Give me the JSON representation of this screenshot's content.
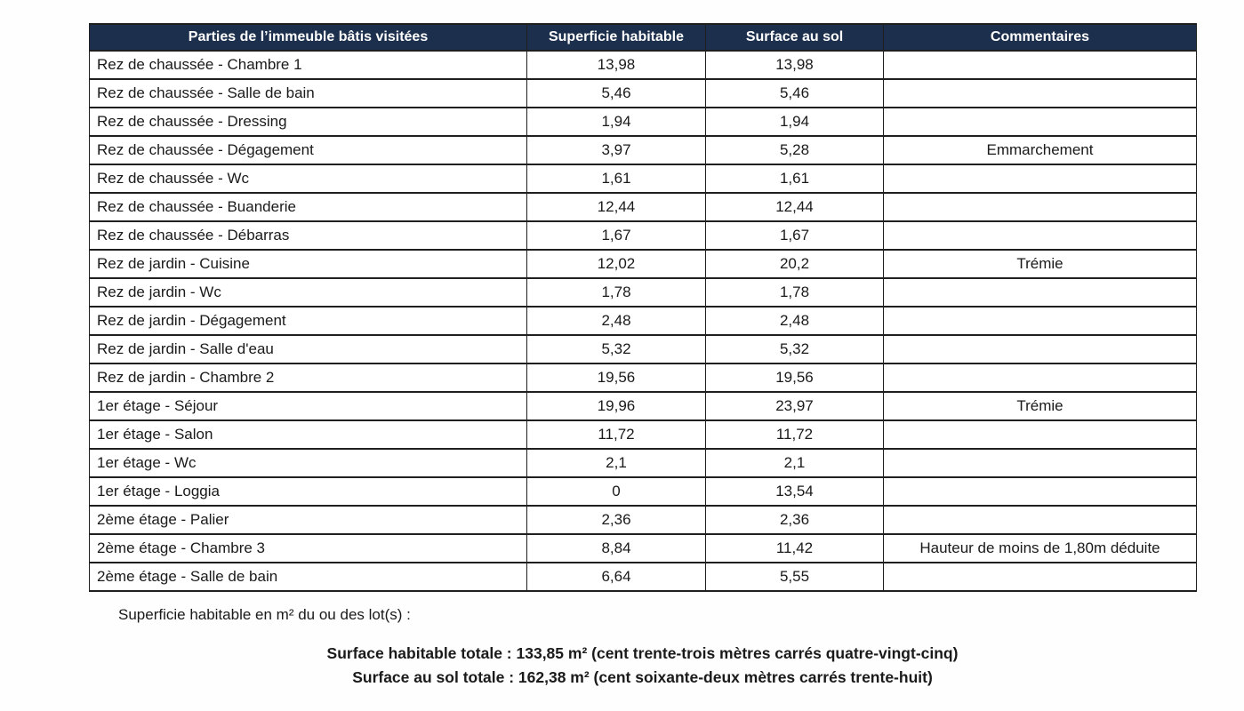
{
  "table": {
    "headers": [
      "Parties de l’immeuble bâtis visitées",
      "Superficie habitable",
      "Surface au sol",
      "Commentaires"
    ],
    "rows": [
      [
        "Rez de chaussée - Chambre 1",
        "13,98",
        "13,98",
        ""
      ],
      [
        "Rez de chaussée - Salle de bain",
        "5,46",
        "5,46",
        ""
      ],
      [
        "Rez de chaussée - Dressing",
        "1,94",
        "1,94",
        ""
      ],
      [
        "Rez de chaussée - Dégagement",
        "3,97",
        "5,28",
        "Emmarchement"
      ],
      [
        "Rez de chaussée - Wc",
        "1,61",
        "1,61",
        ""
      ],
      [
        "Rez de chaussée - Buanderie",
        "12,44",
        "12,44",
        ""
      ],
      [
        "Rez de chaussée - Débarras",
        "1,67",
        "1,67",
        ""
      ],
      [
        "Rez de jardin - Cuisine",
        "12,02",
        "20,2",
        "Trémie"
      ],
      [
        "Rez de jardin - Wc",
        "1,78",
        "1,78",
        ""
      ],
      [
        "Rez de jardin - Dégagement",
        "2,48",
        "2,48",
        ""
      ],
      [
        "Rez de jardin - Salle d'eau",
        "5,32",
        "5,32",
        ""
      ],
      [
        "Rez de jardin - Chambre 2",
        "19,56",
        "19,56",
        ""
      ],
      [
        "1er étage - Séjour",
        "19,96",
        "23,97",
        "Trémie"
      ],
      [
        "1er étage - Salon",
        "11,72",
        "11,72",
        ""
      ],
      [
        "1er étage - Wc",
        "2,1",
        "2,1",
        ""
      ],
      [
        "1er étage - Loggia",
        "0",
        "13,54",
        ""
      ],
      [
        "2ème étage - Palier",
        "2,36",
        "2,36",
        ""
      ],
      [
        "2ème étage - Chambre 3",
        "8,84",
        "11,42",
        "Hauteur de moins de 1,80m déduite"
      ],
      [
        "2ème étage - Salle de bain",
        "6,64",
        "5,55",
        ""
      ]
    ]
  },
  "footer": {
    "note": "Superficie habitable en m² du ou des lot(s) :",
    "total_habitable": "Surface habitable totale : 133,85 m² (cent trente-trois mètres carrés quatre-vingt-cinq)",
    "total_sol": "Surface au sol totale : 162,38 m² (cent soixante-deux mètres carrés trente-huit)"
  },
  "colors": {
    "header_bg": "#1c2f4d",
    "header_text": "#ffffff",
    "border": "#1f1f1f"
  }
}
